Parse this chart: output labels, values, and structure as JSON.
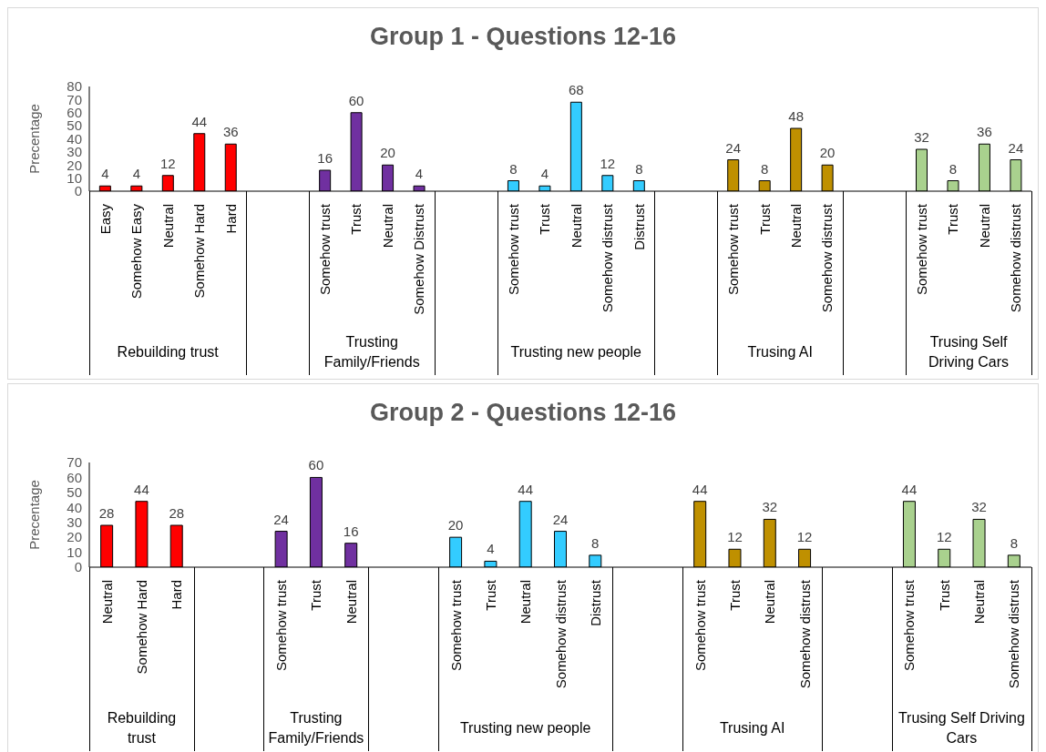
{
  "chart_data": [
    {
      "type": "bar",
      "title": "Group 1 - Questions 12-16",
      "ylabel": "Precentage",
      "ylim": [
        0,
        80
      ],
      "yticks": [
        0,
        10,
        20,
        30,
        40,
        50,
        60,
        70,
        80
      ],
      "data_labels": true,
      "categories": [
        "Easy",
        "Somehow Easy",
        "Neutral",
        "Somehow Hard",
        "Hard",
        null,
        null,
        "Somehow trust",
        "Trust",
        "Neutral",
        "Somehow Distrust",
        null,
        null,
        "Somehow trust",
        "Trust",
        "Neutral",
        "Somehow distrust",
        "Distrust",
        null,
        null,
        "Somehow trust",
        "Trust",
        "Neutral",
        "Somehow distrust",
        null,
        null,
        "Somehow trust",
        "Trust",
        "Neutral",
        "Somehow distrust"
      ],
      "values": [
        4,
        4,
        12,
        44,
        36,
        null,
        null,
        16,
        60,
        20,
        4,
        null,
        null,
        8,
        4,
        68,
        12,
        8,
        null,
        null,
        24,
        8,
        48,
        20,
        null,
        null,
        32,
        8,
        36,
        24
      ],
      "colors": [
        "#ff0000",
        "#ff0000",
        "#ff0000",
        "#ff0000",
        "#ff0000",
        null,
        null,
        "#7030a0",
        "#7030a0",
        "#7030a0",
        "#7030a0",
        null,
        null,
        "#33ccff",
        "#33ccff",
        "#33ccff",
        "#33ccff",
        "#33ccff",
        null,
        null,
        "#bf9000",
        "#bf9000",
        "#bf9000",
        "#bf9000",
        null,
        null,
        "#a9d18e",
        "#a9d18e",
        "#a9d18e",
        "#a9d18e"
      ],
      "annotations": [
        "Rebuilding trust",
        "Trusting Family/Friends",
        "Trusting new people",
        "Trusing AI",
        "Trusing Self Driving Cars"
      ]
    },
    {
      "type": "bar",
      "title": "Group 2 - Questions 12-16",
      "ylabel": "Precentage",
      "ylim": [
        0,
        70
      ],
      "yticks": [
        0,
        10,
        20,
        30,
        40,
        50,
        60,
        70
      ],
      "data_labels": true,
      "categories": [
        "Neutral",
        "Somehow Hard",
        "Hard",
        null,
        null,
        "Somehow trust",
        "Trust",
        "Neutral",
        null,
        null,
        "Somehow trust",
        "Trust",
        "Neutral",
        "Somehow distrust",
        "Distrust",
        null,
        null,
        "Somehow trust",
        "Trust",
        "Neutral",
        "Somehow distrust",
        null,
        null,
        "Somehow trust",
        "Trust",
        "Neutral",
        "Somehow distrust"
      ],
      "values": [
        28,
        44,
        28,
        null,
        null,
        24,
        60,
        16,
        null,
        null,
        20,
        4,
        44,
        24,
        8,
        null,
        null,
        44,
        12,
        32,
        12,
        null,
        null,
        44,
        12,
        32,
        8
      ],
      "colors": [
        "#ff0000",
        "#ff0000",
        "#ff0000",
        null,
        null,
        "#7030a0",
        "#7030a0",
        "#7030a0",
        null,
        null,
        "#33ccff",
        "#33ccff",
        "#33ccff",
        "#33ccff",
        "#33ccff",
        null,
        null,
        "#bf9000",
        "#bf9000",
        "#bf9000",
        "#bf9000",
        null,
        null,
        "#a9d18e",
        "#a9d18e",
        "#a9d18e",
        "#a9d18e"
      ],
      "annotations": [
        "Rebuilding trust",
        "Trusting Family/Friends",
        "Trusting new people",
        "Trusing AI",
        "Trusing Self Driving Cars"
      ]
    }
  ]
}
